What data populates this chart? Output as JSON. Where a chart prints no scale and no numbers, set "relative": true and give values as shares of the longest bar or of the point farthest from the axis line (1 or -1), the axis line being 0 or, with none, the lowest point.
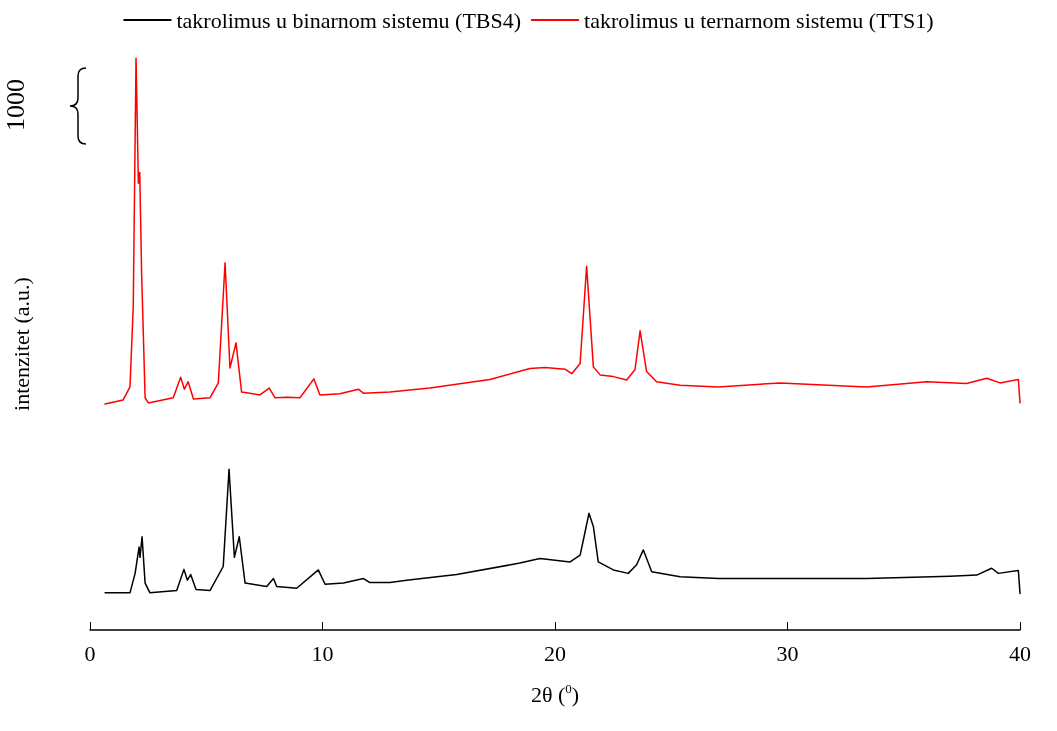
{
  "chart_data": {
    "type": "line",
    "relative": true,
    "xlabel": "2θ ($^{0}$)",
    "ylabel": "intenzitet (a.u.)",
    "xlim": [
      0,
      40
    ],
    "xticks": [
      0,
      10,
      20,
      30,
      40
    ],
    "legend": "top",
    "marker": "none",
    "line_style": "solid",
    "grid": false,
    "annotations": [
      "1000"
    ],
    "series": [
      {
        "name": "takrolimus u binarnom sistemu (TBS4)",
        "color": "#000000",
        "x": [
          0.65,
          1.72,
          1.94,
          2.11,
          2.15,
          2.24,
          2.37,
          2.58,
          3.73,
          4.04,
          4.19,
          4.33,
          4.56,
          5.16,
          5.73,
          5.98,
          6.21,
          6.42,
          6.67,
          7.6,
          7.89,
          8.03,
          8.89,
          9.82,
          10.11,
          10.9,
          11.76,
          12.04,
          12.9,
          13.62,
          15.77,
          18.49,
          19.35,
          20.65,
          21.08,
          21.25,
          21.46,
          21.65,
          21.86,
          22.51,
          23.15,
          23.51,
          23.8,
          24.16,
          25.38,
          27.03,
          29.1,
          33.4,
          36.99,
          38.14,
          38.78,
          39.07,
          39.93,
          40
        ],
        "values": [
          0.065,
          0.065,
          0.099,
          0.145,
          0.127,
          0.163,
          0.082,
          0.065,
          0.069,
          0.106,
          0.087,
          0.097,
          0.071,
          0.069,
          0.111,
          0.281,
          0.127,
          0.163,
          0.082,
          0.076,
          0.09,
          0.076,
          0.073,
          0.105,
          0.08,
          0.082,
          0.09,
          0.083,
          0.083,
          0.087,
          0.097,
          0.117,
          0.125,
          0.119,
          0.131,
          0.163,
          0.204,
          0.181,
          0.119,
          0.105,
          0.099,
          0.114,
          0.14,
          0.102,
          0.093,
          0.09,
          0.09,
          0.09,
          0.094,
          0.096,
          0.108,
          0.099,
          0.104,
          0.064
        ]
      },
      {
        "name": "takrolimus u ternarnom sistemu (TTS1)",
        "color": "#ff0000",
        "x": [
          0.65,
          1.42,
          1.72,
          1.86,
          1.98,
          2.08,
          2.14,
          2.22,
          2.37,
          2.51,
          3.58,
          3.9,
          4.06,
          4.22,
          4.45,
          5.16,
          5.52,
          5.81,
          6.02,
          6.28,
          6.52,
          7.31,
          7.71,
          7.96,
          8.46,
          9.03,
          9.63,
          9.89,
          10.75,
          11.54,
          11.76,
          12.9,
          14.62,
          17.2,
          18.92,
          19.57,
          20.43,
          20.72,
          21.08,
          21.36,
          21.65,
          21.94,
          22.51,
          23.08,
          23.44,
          23.66,
          23.94,
          24.37,
          25.38,
          27.03,
          29.68,
          33.4,
          35.99,
          37.7,
          38.57,
          39.14,
          39.93,
          40
        ],
        "values": [
          0.395,
          0.402,
          0.425,
          0.565,
          1,
          0.781,
          0.8,
          0.624,
          0.406,
          0.397,
          0.406,
          0.442,
          0.421,
          0.434,
          0.404,
          0.406,
          0.432,
          0.642,
          0.458,
          0.502,
          0.416,
          0.411,
          0.423,
          0.406,
          0.407,
          0.406,
          0.439,
          0.411,
          0.413,
          0.421,
          0.414,
          0.416,
          0.423,
          0.438,
          0.457,
          0.459,
          0.456,
          0.448,
          0.466,
          0.636,
          0.46,
          0.446,
          0.443,
          0.437,
          0.455,
          0.523,
          0.452,
          0.434,
          0.428,
          0.425,
          0.432,
          0.425,
          0.434,
          0.431,
          0.44,
          0.432,
          0.438,
          0.397
        ]
      }
    ]
  }
}
